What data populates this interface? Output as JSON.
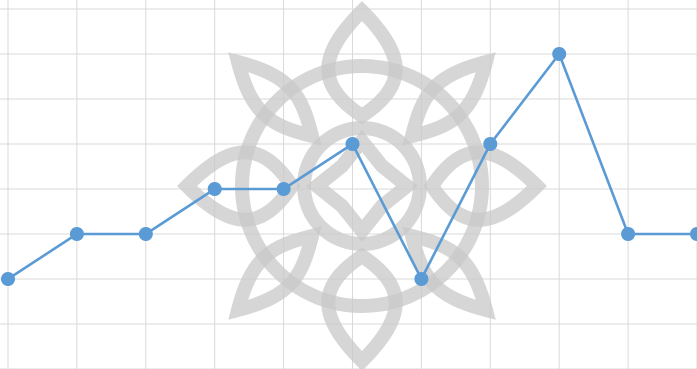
{
  "chart_data": {
    "type": "line",
    "x": [
      0,
      1,
      2,
      3,
      4,
      5,
      6,
      7,
      8,
      9,
      10
    ],
    "series": [
      {
        "values": [
          2,
          3,
          3,
          4,
          4,
          5,
          2,
          5,
          7,
          3,
          3
        ]
      }
    ],
    "ylim": [
      0,
      8
    ],
    "xlim": [
      0,
      10
    ],
    "grid": true,
    "markers": true,
    "watermark": "decorative-mandala",
    "colors": {
      "line": "#5b9bd5",
      "marker": "#5b9bd5",
      "grid": "#d9d9d9",
      "background": "#ffffff"
    }
  }
}
